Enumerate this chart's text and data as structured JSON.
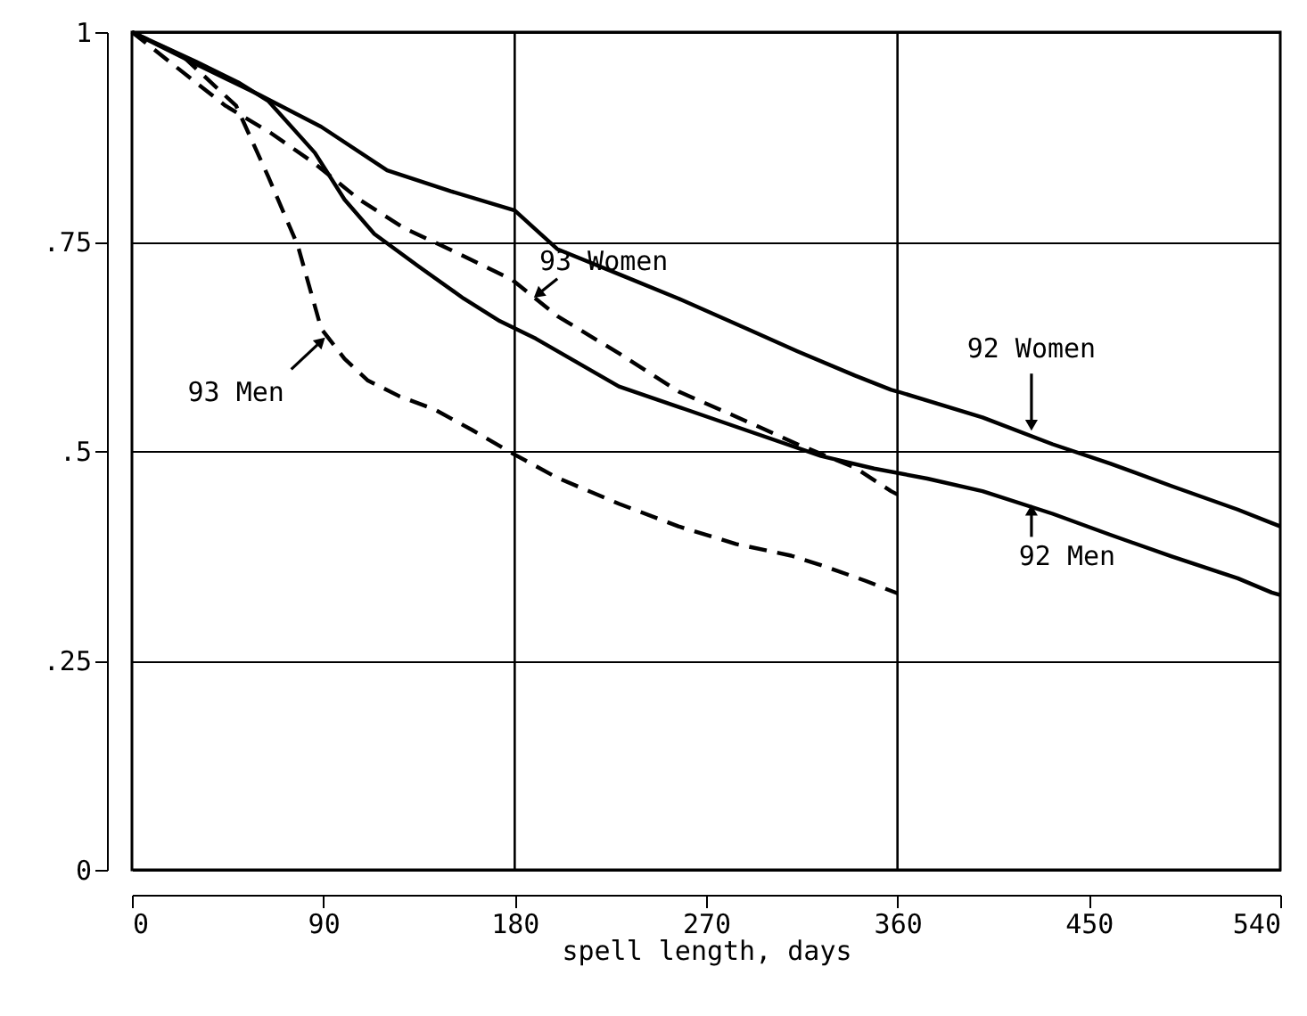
{
  "chart_data": {
    "type": "line",
    "xlabel": "spell length, days",
    "xlim": [
      0,
      540
    ],
    "xticks": [
      0,
      90,
      180,
      270,
      360,
      450,
      540
    ],
    "ylim": [
      0,
      1
    ],
    "yticks": [
      0,
      {
        "value": 0.25,
        "label": ".25"
      },
      {
        "value": 0.5,
        "label": ".5"
      },
      {
        "value": 0.75,
        "label": ".75"
      },
      1
    ],
    "grid": "y",
    "ref_lines": [
      {
        "axis": "x",
        "value": 180,
        "color": "#000000"
      },
      {
        "axis": "x",
        "value": 360,
        "color": "#000000"
      }
    ],
    "series": [
      {
        "color": "#000000",
        "line_style": "solid",
        "x": [
          0,
          30,
          60,
          89,
          120,
          150,
          180,
          200,
          230,
          257,
          290,
          313,
          340,
          357,
          360,
          400,
          433,
          460,
          489,
          520,
          536,
          540
        ],
        "values": [
          1,
          0.962,
          0.925,
          0.887,
          0.835,
          0.81,
          0.787,
          0.741,
          0.71,
          0.682,
          0.645,
          0.619,
          0.59,
          0.573,
          0.571,
          0.54,
          0.508,
          0.485,
          0.458,
          0.43,
          0.414,
          0.41
        ]
      },
      {
        "color": "#000000",
        "line_style": "solid",
        "x": [
          0,
          30,
          50,
          64,
          86,
          100,
          114,
          135,
          156,
          173,
          190,
          229,
          260,
          284,
          324,
          349,
          374,
          400,
          433,
          460,
          489,
          520,
          536,
          540
        ],
        "values": [
          1,
          0.965,
          0.94,
          0.918,
          0.856,
          0.8,
          0.759,
          0.72,
          0.682,
          0.655,
          0.634,
          0.577,
          0.55,
          0.529,
          0.494,
          0.479,
          0.467,
          0.452,
          0.425,
          0.4,
          0.374,
          0.348,
          0.331,
          0.328
        ]
      },
      {
        "color": "#000000",
        "line_style": "dashed",
        "x": [
          0,
          20,
          44,
          65,
          86,
          107,
          128,
          150,
          179,
          200,
          230,
          257,
          285,
          313,
          340,
          357,
          360
        ],
        "values": [
          1,
          0.96,
          0.912,
          0.88,
          0.843,
          0.8,
          0.766,
          0.74,
          0.704,
          0.661,
          0.615,
          0.571,
          0.54,
          0.508,
          0.48,
          0.452,
          0.448
        ]
      },
      {
        "color": "#000000",
        "line_style": "dashed",
        "x": [
          0,
          24,
          49,
          64,
          78,
          89,
          100,
          111,
          126,
          142,
          160,
          179,
          200,
          229,
          257,
          284,
          310,
          326,
          345,
          357,
          360
        ],
        "values": [
          1,
          0.971,
          0.912,
          0.828,
          0.745,
          0.646,
          0.61,
          0.584,
          0.565,
          0.55,
          0.525,
          0.497,
          0.468,
          0.437,
          0.41,
          0.389,
          0.375,
          0.362,
          0.345,
          0.333,
          0.33
        ]
      }
    ],
    "annotations": [
      {
        "text": "93 Women",
        "x": 190,
        "y": 0.68
      },
      {
        "text": "93 Men",
        "x": 90,
        "y": 0.64
      },
      {
        "text": "92 Women",
        "x": 423,
        "y": 0.52
      },
      {
        "text": "92 Men",
        "x": 423,
        "y": 0.44
      }
    ]
  }
}
